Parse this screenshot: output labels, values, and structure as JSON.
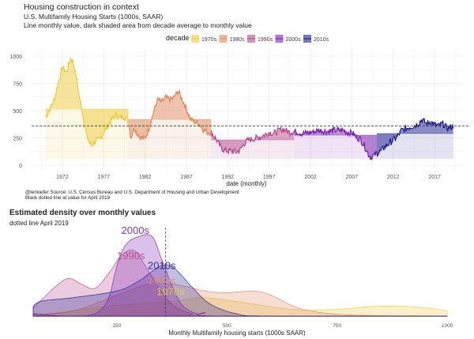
{
  "chart_data": [
    {
      "type": "line",
      "title": "Housing construction in context",
      "subtitle": "U.S. Multifamily Housing Starts (1000s, SAAR)",
      "subtitle2": "Line monthly value, dark shaded area from decade average to monthly value",
      "legend_title": "decade",
      "legend_position": "top",
      "xlabel": "date (monthly)",
      "ylabel": "",
      "ylim": [
        0,
        1000
      ],
      "xlim": [
        1969,
        2020
      ],
      "x_ticks": [
        "1972",
        "1977",
        "1982",
        "1987",
        "1992",
        "1997",
        "2002",
        "2007",
        "2012",
        "2017"
      ],
      "y_ticks": [
        "0",
        "250",
        "500",
        "750",
        "1000"
      ],
      "reference_line": 360,
      "caption": "@lenkiefer Source: U.S. Census Bureau and U.S. Department of Housing and Urban Development",
      "caption2": "Black dotted line at value for April 2019",
      "series": [
        {
          "name": "1970s",
          "color": "#F0C93A",
          "start": 1970,
          "end": 1980,
          "average": 515,
          "points": [
            [
              1970,
              440
            ],
            [
              1970.5,
              520
            ],
            [
              1971,
              600
            ],
            [
              1971.5,
              750
            ],
            [
              1972,
              900
            ],
            [
              1972.5,
              850
            ],
            [
              1973,
              980
            ],
            [
              1973.3,
              950
            ],
            [
              1973.7,
              800
            ],
            [
              1974,
              650
            ],
            [
              1974.5,
              450
            ],
            [
              1975,
              250
            ],
            [
              1975.5,
              180
            ],
            [
              1976,
              220
            ],
            [
              1976.5,
              230
            ],
            [
              1977,
              300
            ],
            [
              1977.5,
              360
            ],
            [
              1978,
              420
            ],
            [
              1978.5,
              460
            ],
            [
              1979,
              430
            ],
            [
              1979.5,
              450
            ],
            [
              1980,
              400
            ]
          ]
        },
        {
          "name": "1980s",
          "color": "#E08A5E",
          "start": 1980,
          "end": 1990,
          "average": 420,
          "points": [
            [
              1980,
              400
            ],
            [
              1980.3,
              250
            ],
            [
              1980.7,
              350
            ],
            [
              1981,
              300
            ],
            [
              1981.5,
              250
            ],
            [
              1982,
              240
            ],
            [
              1982.5,
              350
            ],
            [
              1983,
              480
            ],
            [
              1983.5,
              600
            ],
            [
              1984,
              580
            ],
            [
              1984.5,
              620
            ],
            [
              1985,
              600
            ],
            [
              1985.5,
              620
            ],
            [
              1986,
              680
            ],
            [
              1986.5,
              600
            ],
            [
              1987,
              520
            ],
            [
              1987.5,
              420
            ],
            [
              1988,
              400
            ],
            [
              1988.5,
              380
            ],
            [
              1989,
              330
            ],
            [
              1989.5,
              300
            ],
            [
              1990,
              300
            ]
          ]
        },
        {
          "name": "1990s",
          "color": "#B8498C",
          "start": 1990,
          "end": 2000,
          "average": 232,
          "points": [
            [
              1990,
              300
            ],
            [
              1990.5,
              250
            ],
            [
              1991,
              180
            ],
            [
              1991.5,
              140
            ],
            [
              1992,
              130
            ],
            [
              1992.5,
              130
            ],
            [
              1993,
              120
            ],
            [
              1993.5,
              140
            ],
            [
              1994,
              200
            ],
            [
              1994.5,
              230
            ],
            [
              1995,
              240
            ],
            [
              1995.5,
              250
            ],
            [
              1996,
              260
            ],
            [
              1996.5,
              280
            ],
            [
              1997,
              300
            ],
            [
              1997.5,
              290
            ],
            [
              1998,
              310
            ],
            [
              1998.5,
              330
            ],
            [
              1999,
              320
            ],
            [
              1999.5,
              300
            ],
            [
              2000,
              310
            ]
          ]
        },
        {
          "name": "2000s",
          "color": "#7A1FB0",
          "start": 2000,
          "end": 2010,
          "average": 275,
          "points": [
            [
              2000,
              310
            ],
            [
              2001,
              290
            ],
            [
              2002,
              300
            ],
            [
              2003,
              320
            ],
            [
              2004,
              310
            ],
            [
              2005,
              320
            ],
            [
              2006,
              320
            ],
            [
              2006.5,
              300
            ],
            [
              2007,
              300
            ],
            [
              2007.5,
              260
            ],
            [
              2008,
              240
            ],
            [
              2008.5,
              180
            ],
            [
              2009,
              100
            ],
            [
              2009.3,
              70
            ],
            [
              2009.7,
              90
            ],
            [
              2010,
              110
            ]
          ]
        },
        {
          "name": "2010s",
          "color": "#1A1A8C",
          "start": 2010,
          "end": 2019.3,
          "average": 290,
          "points": [
            [
              2010,
              110
            ],
            [
              2010.5,
              130
            ],
            [
              2011,
              170
            ],
            [
              2011.5,
              200
            ],
            [
              2012,
              230
            ],
            [
              2012.5,
              260
            ],
            [
              2013,
              320
            ],
            [
              2013.5,
              330
            ],
            [
              2014,
              350
            ],
            [
              2014.5,
              360
            ],
            [
              2015,
              380
            ],
            [
              2015.5,
              420
            ],
            [
              2016,
              380
            ],
            [
              2016.5,
              400
            ],
            [
              2017,
              370
            ],
            [
              2017.5,
              360
            ],
            [
              2018,
              380
            ],
            [
              2018.5,
              340
            ],
            [
              2019,
              350
            ],
            [
              2019.3,
              360
            ]
          ]
        }
      ]
    },
    {
      "type": "area",
      "title": "Estimated density over monthly values",
      "subtitle": "dotted line April 2019",
      "xlabel": "Monthly Multifamily housing starts (1000s SAAR)",
      "xlim": [
        60,
        1000
      ],
      "x_ticks": [
        "250",
        "500",
        "750",
        "1000"
      ],
      "reference_line": 360,
      "series": [
        {
          "name": "1970s",
          "color": "#F0C93A",
          "label_at": [
            340,
            0.27
          ],
          "points": [
            [
              60,
              0
            ],
            [
              200,
              0.1
            ],
            [
              300,
              0.15
            ],
            [
              380,
              0.18
            ],
            [
              450,
              0.22
            ],
            [
              550,
              0.15
            ],
            [
              650,
              0.08
            ],
            [
              750,
              0.08
            ],
            [
              850,
              0.12
            ],
            [
              950,
              0.1
            ],
            [
              1000,
              0.06
            ]
          ]
        },
        {
          "name": "1980s",
          "color": "#E08A5E",
          "label_at": [
            320,
            0.4
          ],
          "points": [
            [
              60,
              0.02
            ],
            [
              150,
              0.06
            ],
            [
              250,
              0.25
            ],
            [
              320,
              0.38
            ],
            [
              380,
              0.38
            ],
            [
              450,
              0.3
            ],
            [
              500,
              0.28
            ],
            [
              560,
              0.3
            ],
            [
              600,
              0.25
            ],
            [
              650,
              0.12
            ],
            [
              700,
              0.05
            ],
            [
              800,
              0.01
            ],
            [
              1000,
              0
            ]
          ]
        },
        {
          "name": "1990s",
          "color": "#B8498C",
          "label_at": [
            250,
            0.7
          ],
          "points": [
            [
              60,
              0.1
            ],
            [
              80,
              0.2
            ],
            [
              110,
              0.35
            ],
            [
              140,
              0.45
            ],
            [
              170,
              0.38
            ],
            [
              200,
              0.33
            ],
            [
              230,
              0.5
            ],
            [
              260,
              0.72
            ],
            [
              290,
              0.78
            ],
            [
              320,
              0.55
            ],
            [
              350,
              0.3
            ],
            [
              380,
              0.12
            ],
            [
              420,
              0.03
            ],
            [
              470,
              0
            ],
            [
              1000,
              0
            ]
          ]
        },
        {
          "name": "2010s",
          "color": "#1A1A8C",
          "label_at": [
            320,
            0.58
          ],
          "points": [
            [
              60,
              0.12
            ],
            [
              80,
              0.18
            ],
            [
              150,
              0.22
            ],
            [
              250,
              0.3
            ],
            [
              300,
              0.42
            ],
            [
              350,
              0.6
            ],
            [
              380,
              0.57
            ],
            [
              420,
              0.35
            ],
            [
              460,
              0.15
            ],
            [
              520,
              0.03
            ],
            [
              600,
              0
            ],
            [
              1000,
              0
            ]
          ]
        },
        {
          "name": "2000s",
          "color": "#7A1FB0",
          "label_at": [
            260,
            1.0
          ],
          "points": [
            [
              60,
              0.03
            ],
            [
              100,
              0.01
            ],
            [
              150,
              0
            ],
            [
              200,
              0.03
            ],
            [
              230,
              0.2
            ],
            [
              250,
              0.6
            ],
            [
              270,
              0.85
            ],
            [
              300,
              0.95
            ],
            [
              330,
              0.95
            ],
            [
              350,
              0.7
            ],
            [
              380,
              0.3
            ],
            [
              400,
              0.12
            ],
            [
              430,
              0.03
            ],
            [
              450,
              0.04
            ],
            [
              480,
              0
            ],
            [
              1000,
              0
            ]
          ]
        }
      ]
    }
  ]
}
